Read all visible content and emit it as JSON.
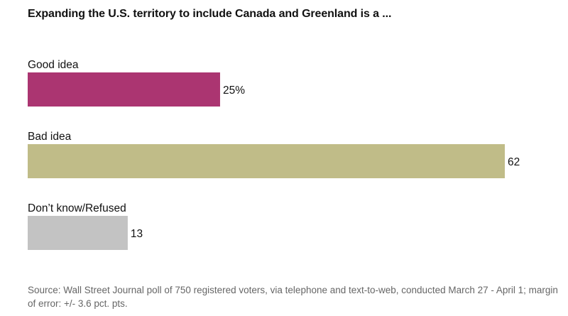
{
  "chart_data": {
    "type": "bar",
    "orientation": "horizontal",
    "title": "Expanding the U.S. territory to include Canada and Greenland is a ...",
    "categories": [
      "Good idea",
      "Bad idea",
      "Don’t know/Refused"
    ],
    "values": [
      25,
      62,
      13
    ],
    "value_labels": [
      "25%",
      "62",
      "13"
    ],
    "colors": [
      "#ab3571",
      "#c0bc88",
      "#c3c3c3"
    ],
    "xlim": [
      0,
      62
    ],
    "unit": "%",
    "source": "Source: Wall Street Journal poll of 750 registered voters, via telephone and text-to-web, conducted March 27 - April 1; margin of error: +/- 3.6 pct. pts."
  }
}
